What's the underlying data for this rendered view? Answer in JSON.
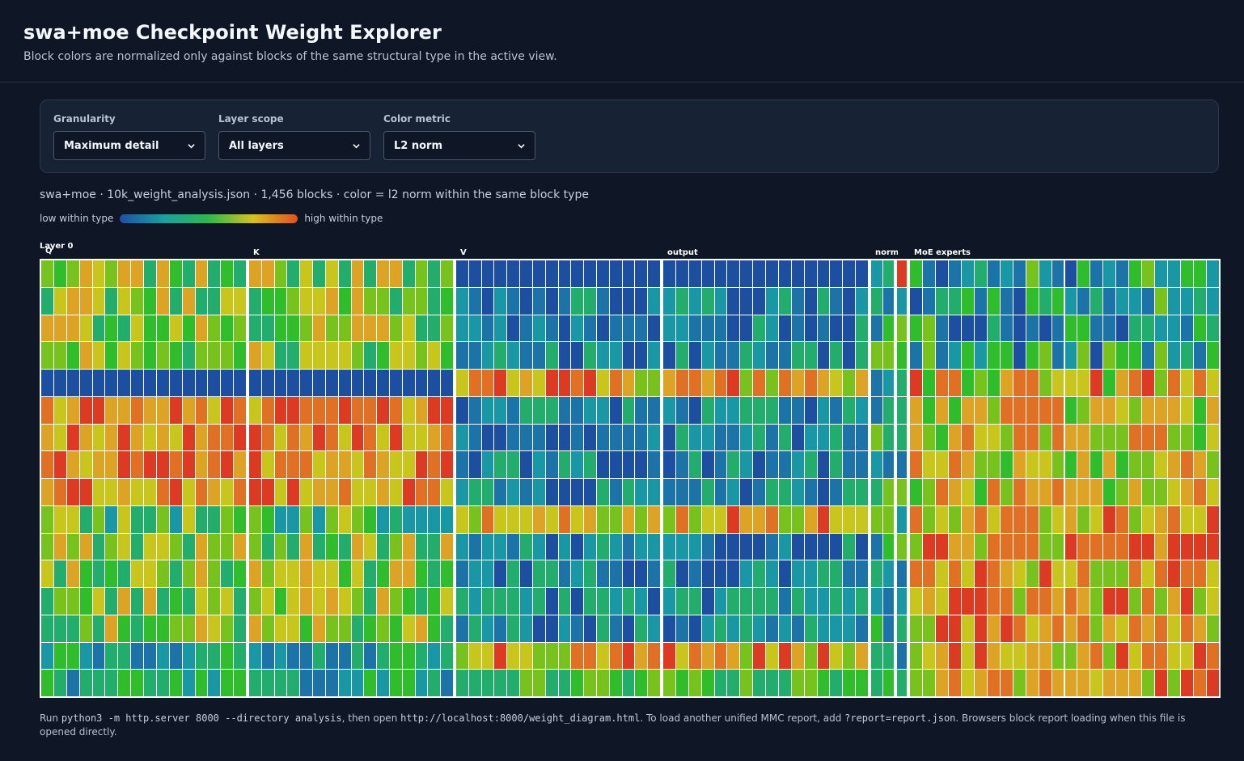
{
  "header": {
    "title": "swa+moe Checkpoint Weight Explorer",
    "subtitle": "Block colors are normalized only against blocks of the same structural type in the active view."
  },
  "controls": {
    "granularity": {
      "label": "Granularity",
      "value": "Maximum detail"
    },
    "layer_scope": {
      "label": "Layer scope",
      "value": "All layers"
    },
    "color_metric": {
      "label": "Color metric",
      "value": "L2 norm"
    }
  },
  "summary": "swa+moe · 10k_weight_analysis.json · 1,456 blocks · color = l2 norm within the same block type",
  "legend": {
    "low": "low within type",
    "high": "high within type"
  },
  "heatmap": {
    "layer_label": "Layer 0",
    "sections": [
      {
        "label": "Q",
        "cols": 16,
        "rows": 16,
        "pattern": "mixed"
      },
      {
        "label": "K",
        "cols": 16,
        "rows": 16,
        "pattern": "mixed"
      },
      {
        "label": "V",
        "cols": 16,
        "rows": 16,
        "pattern": "cool"
      },
      {
        "label": "output",
        "cols": 16,
        "rows": 16,
        "pattern": "cool"
      },
      {
        "label": "norm: router",
        "cols": 2,
        "rows": 16,
        "pattern": "thin"
      },
      {
        "label": "",
        "cols": 1,
        "rows": 16,
        "pattern": "thin"
      },
      {
        "label": "MoE experts",
        "cols": 24,
        "rows": 16,
        "pattern": "warm"
      }
    ],
    "colors": [
      "#1c4fa0",
      "#1b73a8",
      "#1a97a4",
      "#22ad6c",
      "#2fbd2c",
      "#78c21e",
      "#c8c51d",
      "#dca324",
      "#e07024",
      "#dc3a22"
    ]
  },
  "footer": {
    "t1": "Run ",
    "c1": "python3 -m http.server 8000 --directory analysis",
    "t2": ", then open ",
    "c2": "http://localhost:8000/weight_diagram.html",
    "t3": ". To load another unified MMC report, add ",
    "c3": "?report=report.json",
    "t4": ". Browsers block report loading when this file is opened directly."
  }
}
